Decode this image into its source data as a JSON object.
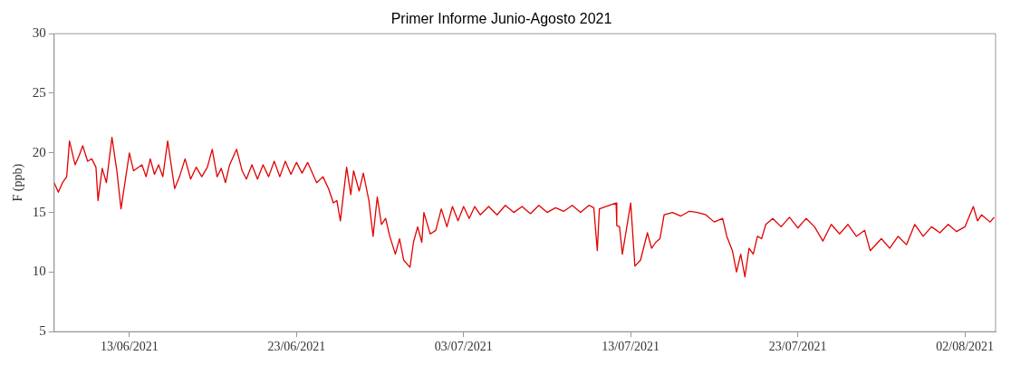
{
  "chart_data": {
    "type": "line",
    "title": "Primer Informe Junio-Agosto 2021",
    "ylabel": "F (ppb)",
    "xlim": [
      "2021-06-08T12:00",
      "2021-08-03T20:00"
    ],
    "xticks": [
      {
        "value": "2021-06-13",
        "label": "13/06/2021"
      },
      {
        "value": "2021-06-23",
        "label": "23/06/2021"
      },
      {
        "value": "2021-07-03",
        "label": "03/07/2021"
      },
      {
        "value": "2021-07-13",
        "label": "13/07/2021"
      },
      {
        "value": "2021-07-23",
        "label": "23/07/2021"
      },
      {
        "value": "2021-08-02",
        "label": "02/08/2021"
      }
    ],
    "ylim": [
      5,
      30
    ],
    "yticks": [
      5,
      10,
      15,
      20,
      25,
      30
    ],
    "grid": false,
    "legend": false,
    "marker": "none",
    "line_style": "solid",
    "x": [
      "2021-06-08T12:00",
      "2021-06-08T18:00",
      "2021-06-09T00:00",
      "2021-06-09T06:00",
      "2021-06-09T10:00",
      "2021-06-09T18:00",
      "2021-06-10T00:00",
      "2021-06-10T05:00",
      "2021-06-10T12:00",
      "2021-06-10T18:00",
      "2021-06-11T00:00",
      "2021-06-11T03:00",
      "2021-06-11T09:00",
      "2021-06-11T15:00",
      "2021-06-11T23:00",
      "2021-06-12T06:00",
      "2021-06-12T12:00",
      "2021-06-13T00:00",
      "2021-06-13T06:00",
      "2021-06-13T18:00",
      "2021-06-14T00:00",
      "2021-06-14T06:00",
      "2021-06-14T12:00",
      "2021-06-14T18:00",
      "2021-06-15T00:00",
      "2021-06-15T07:00",
      "2021-06-15T12:00",
      "2021-06-15T17:00",
      "2021-06-16T00:00",
      "2021-06-16T08:00",
      "2021-06-16T16:00",
      "2021-06-17T00:00",
      "2021-06-17T08:00",
      "2021-06-17T16:00",
      "2021-06-17T23:00",
      "2021-06-18T06:00",
      "2021-06-18T12:00",
      "2021-06-18T18:00",
      "2021-06-19T00:00",
      "2021-06-19T10:00",
      "2021-06-19T18:00",
      "2021-06-20T00:00",
      "2021-06-20T08:00",
      "2021-06-20T16:00",
      "2021-06-21T00:00",
      "2021-06-21T08:00",
      "2021-06-21T16:00",
      "2021-06-22T00:00",
      "2021-06-22T08:00",
      "2021-06-22T16:00",
      "2021-06-23T00:00",
      "2021-06-23T08:00",
      "2021-06-23T16:00",
      "2021-06-24T05:00",
      "2021-06-24T14:00",
      "2021-06-24T22:00",
      "2021-06-25T05:00",
      "2021-06-25T10:00",
      "2021-06-25T15:00",
      "2021-06-26T00:00",
      "2021-06-26T06:00",
      "2021-06-26T10:00",
      "2021-06-26T18:00",
      "2021-06-27T00:00",
      "2021-06-27T08:00",
      "2021-06-27T14:00",
      "2021-06-27T20:00",
      "2021-06-28T02:00",
      "2021-06-28T08:00",
      "2021-06-28T14:00",
      "2021-06-28T22:00",
      "2021-06-29T04:00",
      "2021-06-29T10:00",
      "2021-06-29T19:00",
      "2021-06-30T00:00",
      "2021-06-30T06:00",
      "2021-06-30T12:00",
      "2021-06-30T15:00",
      "2021-07-01T00:00",
      "2021-07-01T08:00",
      "2021-07-01T16:00",
      "2021-07-02T00:00",
      "2021-07-02T08:00",
      "2021-07-02T16:00",
      "2021-07-03T00:00",
      "2021-07-03T08:00",
      "2021-07-03T16:00",
      "2021-07-04T00:00",
      "2021-07-04T12:00",
      "2021-07-05T00:00",
      "2021-07-05T12:00",
      "2021-07-06T00:00",
      "2021-07-06T12:00",
      "2021-07-07T00:00",
      "2021-07-07T12:00",
      "2021-07-08T00:00",
      "2021-07-08T12:00",
      "2021-07-09T00:00",
      "2021-07-09T12:00",
      "2021-07-10T00:00",
      "2021-07-10T12:00",
      "2021-07-10T19:00",
      "2021-07-11T00:00",
      "2021-07-11T03:00",
      "2021-07-11T12:00",
      "2021-07-12T03:00",
      "2021-07-12T04:00",
      "2021-07-12T08:00",
      "2021-07-12T12:00",
      "2021-07-13T00:00",
      "2021-07-13T06:00",
      "2021-07-13T14:00",
      "2021-07-14T00:00",
      "2021-07-14T06:00",
      "2021-07-14T12:00",
      "2021-07-14T18:00",
      "2021-07-15T00:00",
      "2021-07-15T12:00",
      "2021-07-16T00:00",
      "2021-07-16T12:00",
      "2021-07-17T00:00",
      "2021-07-17T12:00",
      "2021-07-18T00:00",
      "2021-07-18T12:00",
      "2021-07-18T18:00",
      "2021-07-19T02:00",
      "2021-07-19T08:00",
      "2021-07-19T14:00",
      "2021-07-19T20:00",
      "2021-07-20T02:00",
      "2021-07-20T08:00",
      "2021-07-20T14:00",
      "2021-07-20T20:00",
      "2021-07-21T02:00",
      "2021-07-21T12:00",
      "2021-07-22T00:00",
      "2021-07-22T12:00",
      "2021-07-23T00:00",
      "2021-07-23T12:00",
      "2021-07-24T00:00",
      "2021-07-24T12:00",
      "2021-07-25T00:00",
      "2021-07-25T12:00",
      "2021-07-26T00:00",
      "2021-07-26T12:00",
      "2021-07-27T00:00",
      "2021-07-27T08:00",
      "2021-07-28T00:00",
      "2021-07-28T12:00",
      "2021-07-29T00:00",
      "2021-07-29T12:00",
      "2021-07-30T00:00",
      "2021-07-30T12:00",
      "2021-07-31T00:00",
      "2021-07-31T12:00",
      "2021-08-01T00:00",
      "2021-08-01T12:00",
      "2021-08-02T00:00",
      "2021-08-02T12:00",
      "2021-08-02T18:00",
      "2021-08-03T00:00",
      "2021-08-03T12:00",
      "2021-08-03T18:00"
    ],
    "series": [
      {
        "color": "#e00000",
        "values": [
          17.5,
          16.7,
          17.5,
          18.0,
          21.0,
          19.0,
          19.8,
          20.6,
          19.3,
          19.5,
          18.8,
          16.0,
          18.7,
          17.5,
          21.3,
          18.5,
          15.3,
          20.0,
          18.5,
          19.0,
          18.0,
          19.5,
          18.2,
          19.0,
          18.0,
          21.0,
          19.0,
          17.0,
          18.0,
          19.5,
          17.8,
          18.8,
          18.0,
          18.8,
          20.3,
          18.0,
          18.7,
          17.5,
          19.0,
          20.3,
          18.5,
          17.8,
          19.0,
          17.8,
          19.0,
          18.0,
          19.3,
          18.0,
          19.3,
          18.2,
          19.2,
          18.3,
          19.2,
          17.5,
          18.0,
          17.0,
          15.8,
          16.0,
          14.3,
          18.8,
          16.5,
          18.5,
          16.8,
          18.3,
          16.0,
          13.0,
          16.3,
          14.0,
          14.5,
          13.0,
          11.5,
          12.8,
          11.0,
          10.4,
          12.5,
          13.8,
          12.5,
          15.0,
          13.2,
          13.5,
          15.3,
          13.8,
          15.5,
          14.3,
          15.5,
          14.5,
          15.5,
          14.8,
          15.5,
          14.8,
          15.6,
          15.0,
          15.5,
          14.9,
          15.6,
          15.0,
          15.4,
          15.1,
          15.6,
          15.0,
          15.6,
          15.4,
          11.8,
          15.3,
          15.5,
          15.8,
          13.9,
          13.8,
          11.5,
          15.8,
          10.5,
          11.0,
          13.3,
          12.0,
          12.5,
          12.8,
          14.8,
          15.0,
          14.7,
          15.1,
          15.0,
          14.8,
          14.2,
          14.5,
          13.0,
          11.8,
          10.0,
          11.5,
          9.6,
          12.0,
          11.5,
          13.0,
          12.8,
          14.0,
          14.5,
          13.8,
          14.6,
          13.7,
          14.5,
          13.8,
          12.6,
          14.0,
          13.2,
          14.0,
          13.0,
          13.5,
          11.8,
          12.8,
          12.0,
          13.0,
          12.3,
          14.0,
          13.0,
          13.8,
          13.3,
          14.0,
          13.4,
          13.8,
          15.5,
          14.3,
          14.8,
          14.2,
          14.6
        ]
      }
    ]
  }
}
